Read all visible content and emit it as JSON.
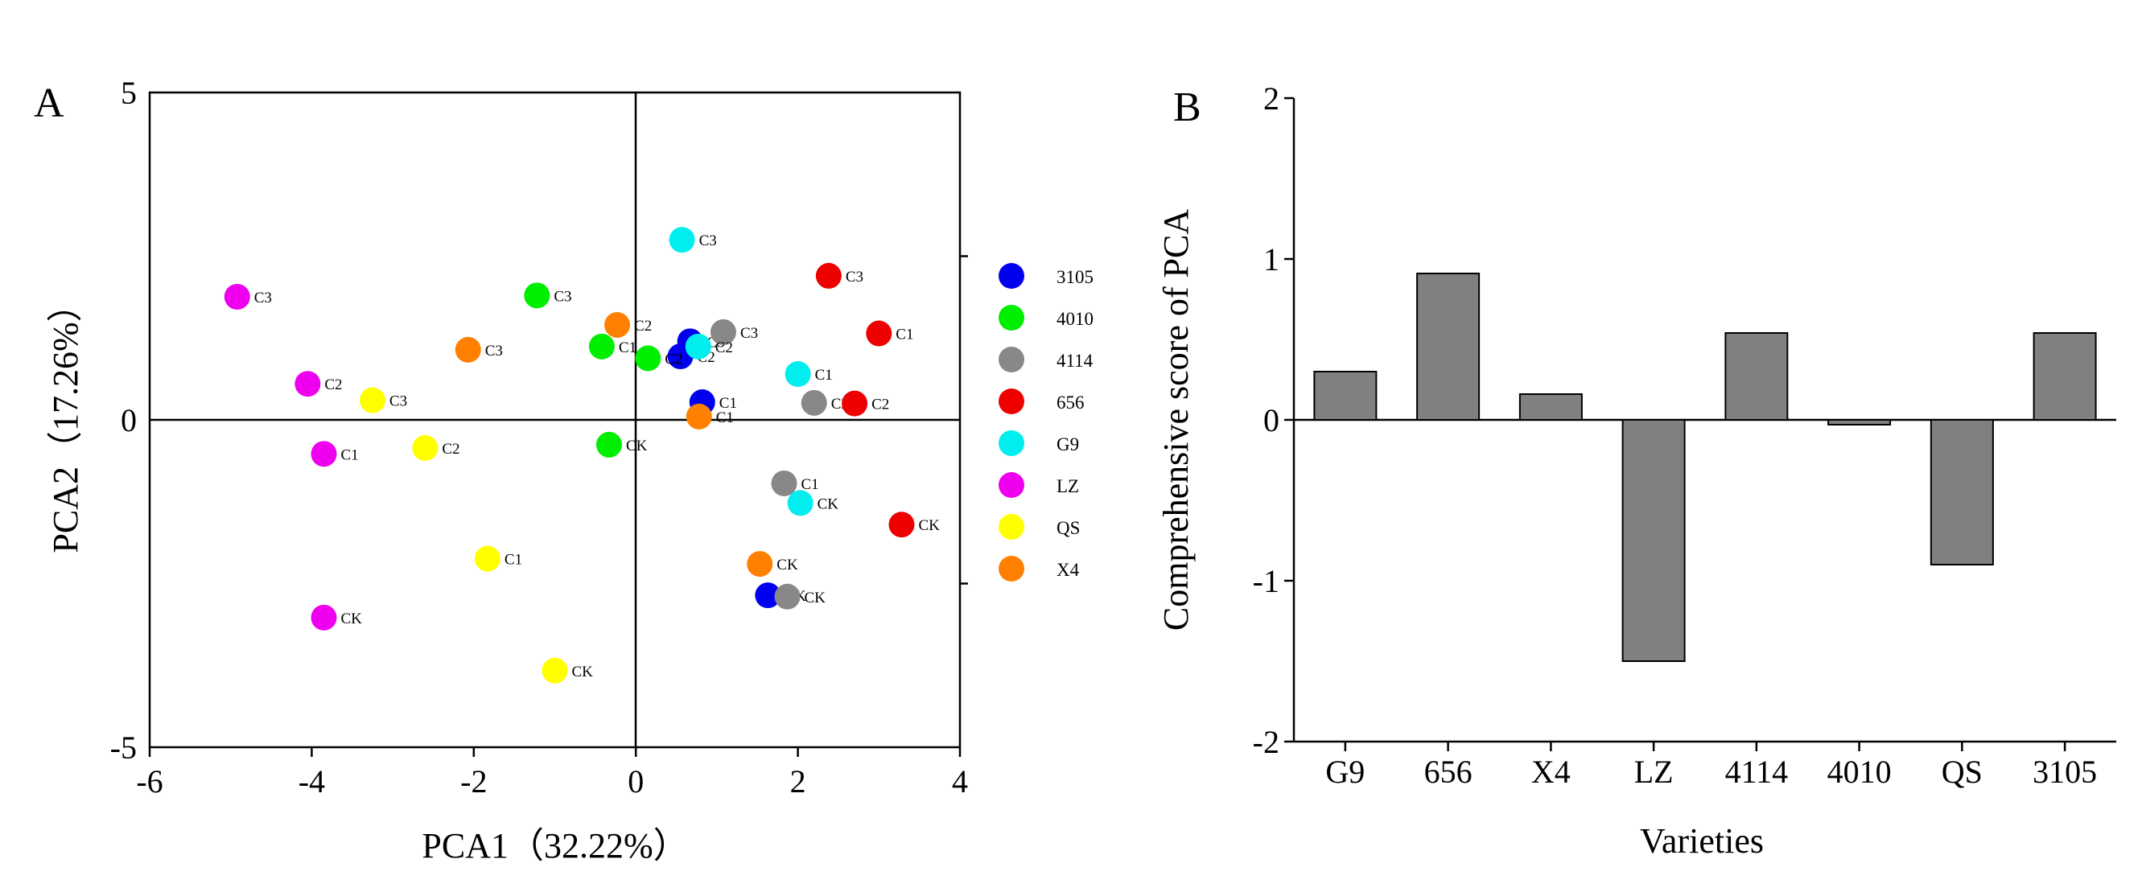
{
  "chart_data": [
    {
      "panel": "A",
      "type": "scatter",
      "xlabel": "PCA1（32.22%）",
      "ylabel": "PCA2（17.26%）",
      "xlim": [
        -6,
        4
      ],
      "ylim": [
        -5,
        5
      ],
      "xticks": [
        "-6",
        "-4",
        "-2",
        "0",
        "2",
        "4"
      ],
      "yticks": [
        "-5",
        "0",
        "5"
      ],
      "grid": false,
      "legend": "right",
      "series": [
        {
          "name": "3105",
          "color": "#0000ee",
          "points": [
            {
              "label": "CK",
              "x": 1.63,
              "y": -2.68
            },
            {
              "label": "C1",
              "x": 0.82,
              "y": 0.27
            },
            {
              "label": "C2",
              "x": 0.55,
              "y": 0.97
            },
            {
              "label": "C3",
              "x": 0.67,
              "y": 1.2
            }
          ]
        },
        {
          "name": "4010",
          "color": "#00ee00",
          "points": [
            {
              "label": "CK",
              "x": -0.33,
              "y": -0.38
            },
            {
              "label": "C1",
              "x": -0.42,
              "y": 1.12
            },
            {
              "label": "C2",
              "x": 0.15,
              "y": 0.94
            },
            {
              "label": "C3",
              "x": -1.22,
              "y": 1.9
            }
          ]
        },
        {
          "name": "4114",
          "color": "#888888",
          "points": [
            {
              "label": "CK",
              "x": 1.87,
              "y": -2.7
            },
            {
              "label": "C1",
              "x": 1.83,
              "y": -0.97
            },
            {
              "label": "C2",
              "x": 2.2,
              "y": 0.26
            },
            {
              "label": "C3",
              "x": 1.08,
              "y": 1.34
            }
          ]
        },
        {
          "name": "656",
          "color": "#ee0000",
          "points": [
            {
              "label": "CK",
              "x": 3.28,
              "y": -1.6
            },
            {
              "label": "C1",
              "x": 3.0,
              "y": 1.32
            },
            {
              "label": "C2",
              "x": 2.7,
              "y": 0.25
            },
            {
              "label": "C3",
              "x": 2.38,
              "y": 2.2
            }
          ]
        },
        {
          "name": "G9",
          "color": "#00eeee",
          "points": [
            {
              "label": "CK",
              "x": 2.03,
              "y": -1.27
            },
            {
              "label": "C1",
              "x": 2.0,
              "y": 0.7
            },
            {
              "label": "C2",
              "x": 0.77,
              "y": 1.12
            },
            {
              "label": "C3",
              "x": 0.57,
              "y": 2.75
            }
          ]
        },
        {
          "name": "LZ",
          "color": "#ee00ee",
          "points": [
            {
              "label": "CK",
              "x": -3.85,
              "y": -3.02
            },
            {
              "label": "C1",
              "x": -3.85,
              "y": -0.52
            },
            {
              "label": "C2",
              "x": -4.05,
              "y": 0.55
            },
            {
              "label": "C3",
              "x": -4.92,
              "y": 1.88
            }
          ]
        },
        {
          "name": "QS",
          "color": "#ffff00",
          "points": [
            {
              "label": "CK",
              "x": -1.0,
              "y": -3.83
            },
            {
              "label": "C1",
              "x": -1.83,
              "y": -2.12
            },
            {
              "label": "C2",
              "x": -2.6,
              "y": -0.43
            },
            {
              "label": "C3",
              "x": -3.25,
              "y": 0.3
            }
          ]
        },
        {
          "name": "X4",
          "color": "#ff8000",
          "points": [
            {
              "label": "CK",
              "x": 1.53,
              "y": -2.2
            },
            {
              "label": "C1",
              "x": 0.78,
              "y": 0.05
            },
            {
              "label": "C2",
              "x": -0.23,
              "y": 1.45
            },
            {
              "label": "C3",
              "x": -2.07,
              "y": 1.07
            }
          ]
        }
      ]
    },
    {
      "panel": "B",
      "type": "bar",
      "xlabel": "Varieties",
      "ylabel": "Comprehensive score of PCA",
      "ylim": [
        -2,
        2
      ],
      "yticks": [
        "-2",
        "-1",
        "0",
        "1",
        "2"
      ],
      "bar_color": "#808080",
      "categories": [
        "G9",
        "656",
        "X4",
        "LZ",
        "4114",
        "4010",
        "QS",
        "3105"
      ],
      "values": [
        0.3,
        0.91,
        0.16,
        -1.5,
        0.54,
        -0.03,
        -0.9,
        0.54
      ]
    }
  ]
}
